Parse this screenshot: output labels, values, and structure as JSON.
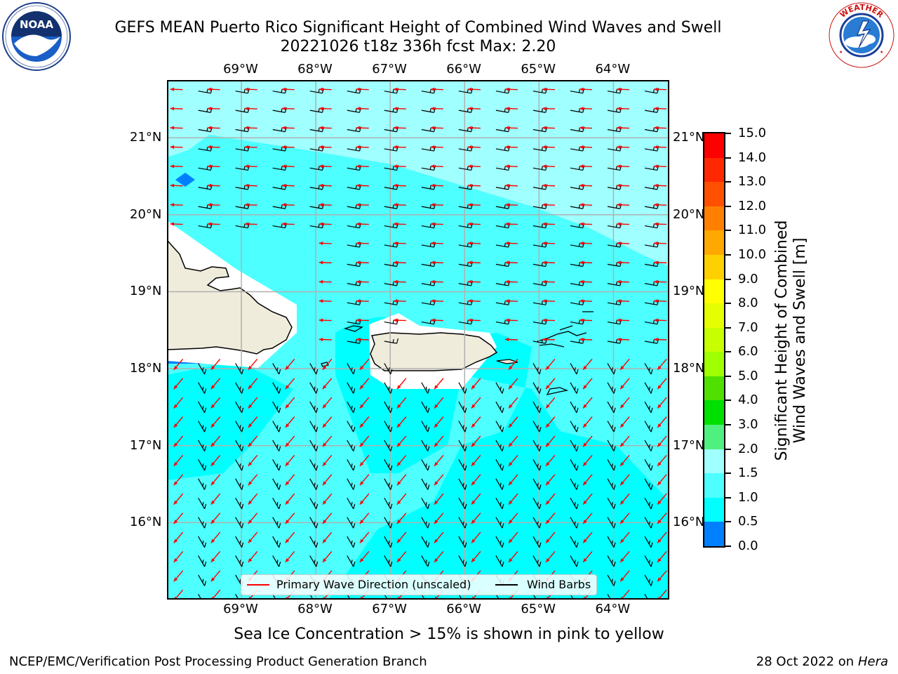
{
  "title": {
    "line1": "GEFS MEAN Puerto Rico Significant Height of Combined Wind Waves and Swell",
    "line2": "20221026 t18z 336h fcst   Max: 2.20"
  },
  "logos": {
    "left": "NOAA",
    "right_words": [
      "NATIONAL",
      "WEATHER",
      "SERVICE"
    ]
  },
  "map": {
    "lon_labels": [
      "69°W",
      "68°W",
      "67°W",
      "66°W",
      "65°W",
      "64°W"
    ],
    "lat_labels": [
      "21°N",
      "20°N",
      "19°N",
      "18°N",
      "17°N",
      "16°N"
    ],
    "lon_range": [
      -70.0,
      -63.25
    ],
    "lat_range": [
      15.0,
      21.75
    ],
    "colors": {
      "ocean_light": "#a0ffff",
      "ocean_mid": "#4dffff",
      "ocean_deep": "#00ffff",
      "land": "#efecdc",
      "wave_arrow": "#ff0000",
      "wind_barb": "#000000",
      "grid": "#b0b0b0"
    }
  },
  "colorbar": {
    "title_line1": "Significant Height of Combined",
    "title_line2": "Wind Waves and Swell [m]",
    "labels": [
      "15.0",
      "14.0",
      "13.0",
      "12.0",
      "11.0",
      "10.0",
      "9.0",
      "8.0",
      "7.0",
      "6.0",
      "5.0",
      "4.0",
      "3.0",
      "2.0",
      "1.5",
      "1.0",
      "0.5",
      "0.0"
    ],
    "colors": [
      "#ff0000",
      "#ff2800",
      "#ff5000",
      "#ff8000",
      "#ffa800",
      "#ffd000",
      "#ffff00",
      "#e6ff00",
      "#c8ff00",
      "#a0ff00",
      "#50e000",
      "#00e000",
      "#50f080",
      "#a0ffff",
      "#4dffff",
      "#00ffff",
      "#0080ff",
      "#0000ff"
    ]
  },
  "legend": {
    "wave_label": "Primary Wave Direction (unscaled)",
    "barb_label": "Wind Barbs"
  },
  "caption": "Sea Ice Concentration > 15% is shown in pink to yellow",
  "footer": {
    "left": "NCEP/EMC/Verification Post Processing Product Generation Branch",
    "right_date": "28 Oct 2022 on",
    "right_host": "Hera"
  }
}
